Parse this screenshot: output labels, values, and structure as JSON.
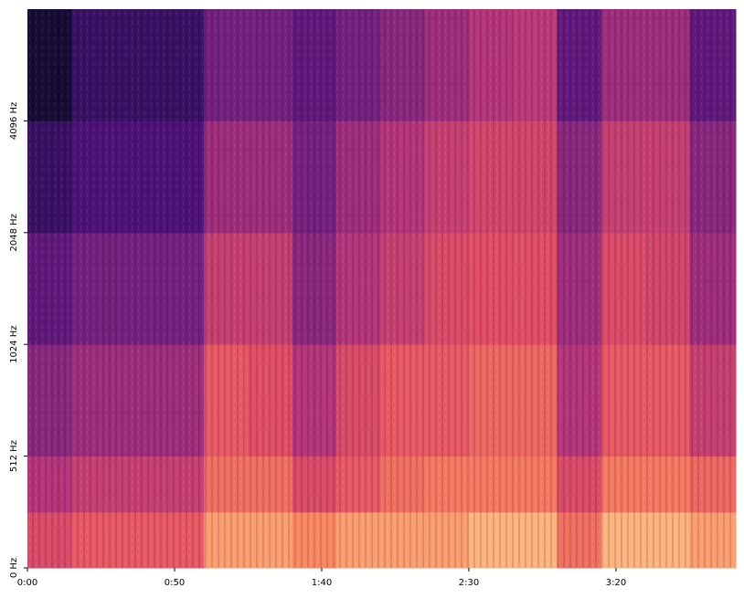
{
  "chart_data": {
    "type": "spectrogram",
    "colormap": "magma",
    "yscale": "linear-log2",
    "xlim": [
      0,
      240.7
    ],
    "ylim": [
      0,
      8192
    ],
    "xticks": [
      {
        "value": 0,
        "label": "0:00"
      },
      {
        "value": 50,
        "label": "0:50"
      },
      {
        "value": 100,
        "label": "1:40"
      },
      {
        "value": 150,
        "label": "2:30"
      },
      {
        "value": 200,
        "label": "3:20"
      }
    ],
    "yticks": [
      {
        "value": 0,
        "label": "0 Hz"
      },
      {
        "value": 512,
        "label": "512 Hz"
      },
      {
        "value": 1024,
        "label": "1024 Hz"
      },
      {
        "value": 2048,
        "label": "2048 Hz"
      },
      {
        "value": 4096,
        "label": "4096 Hz"
      }
    ],
    "x": [
      0,
      15,
      30,
      45,
      60,
      75,
      90,
      105,
      120,
      135,
      150,
      165,
      180,
      195,
      210,
      225
    ],
    "freq_edges": [
      0,
      256,
      512,
      1024,
      2048,
      4096,
      8192
    ],
    "z": [
      [
        0.6,
        0.65,
        0.65,
        0.65,
        0.8,
        0.8,
        0.75,
        0.8,
        0.8,
        0.8,
        0.85,
        0.85,
        0.7,
        0.85,
        0.85,
        0.8
      ],
      [
        0.5,
        0.55,
        0.55,
        0.55,
        0.7,
        0.7,
        0.6,
        0.65,
        0.7,
        0.72,
        0.72,
        0.72,
        0.6,
        0.72,
        0.72,
        0.68
      ],
      [
        0.4,
        0.45,
        0.45,
        0.45,
        0.65,
        0.62,
        0.5,
        0.6,
        0.65,
        0.65,
        0.68,
        0.68,
        0.5,
        0.65,
        0.65,
        0.55
      ],
      [
        0.3,
        0.35,
        0.35,
        0.35,
        0.55,
        0.55,
        0.4,
        0.5,
        0.55,
        0.6,
        0.62,
        0.62,
        0.45,
        0.6,
        0.58,
        0.45
      ],
      [
        0.2,
        0.25,
        0.25,
        0.25,
        0.45,
        0.45,
        0.35,
        0.45,
        0.5,
        0.55,
        0.58,
        0.58,
        0.4,
        0.55,
        0.55,
        0.4
      ],
      [
        0.1,
        0.2,
        0.2,
        0.2,
        0.35,
        0.35,
        0.3,
        0.35,
        0.4,
        0.45,
        0.5,
        0.52,
        0.3,
        0.45,
        0.45,
        0.3
      ]
    ]
  }
}
